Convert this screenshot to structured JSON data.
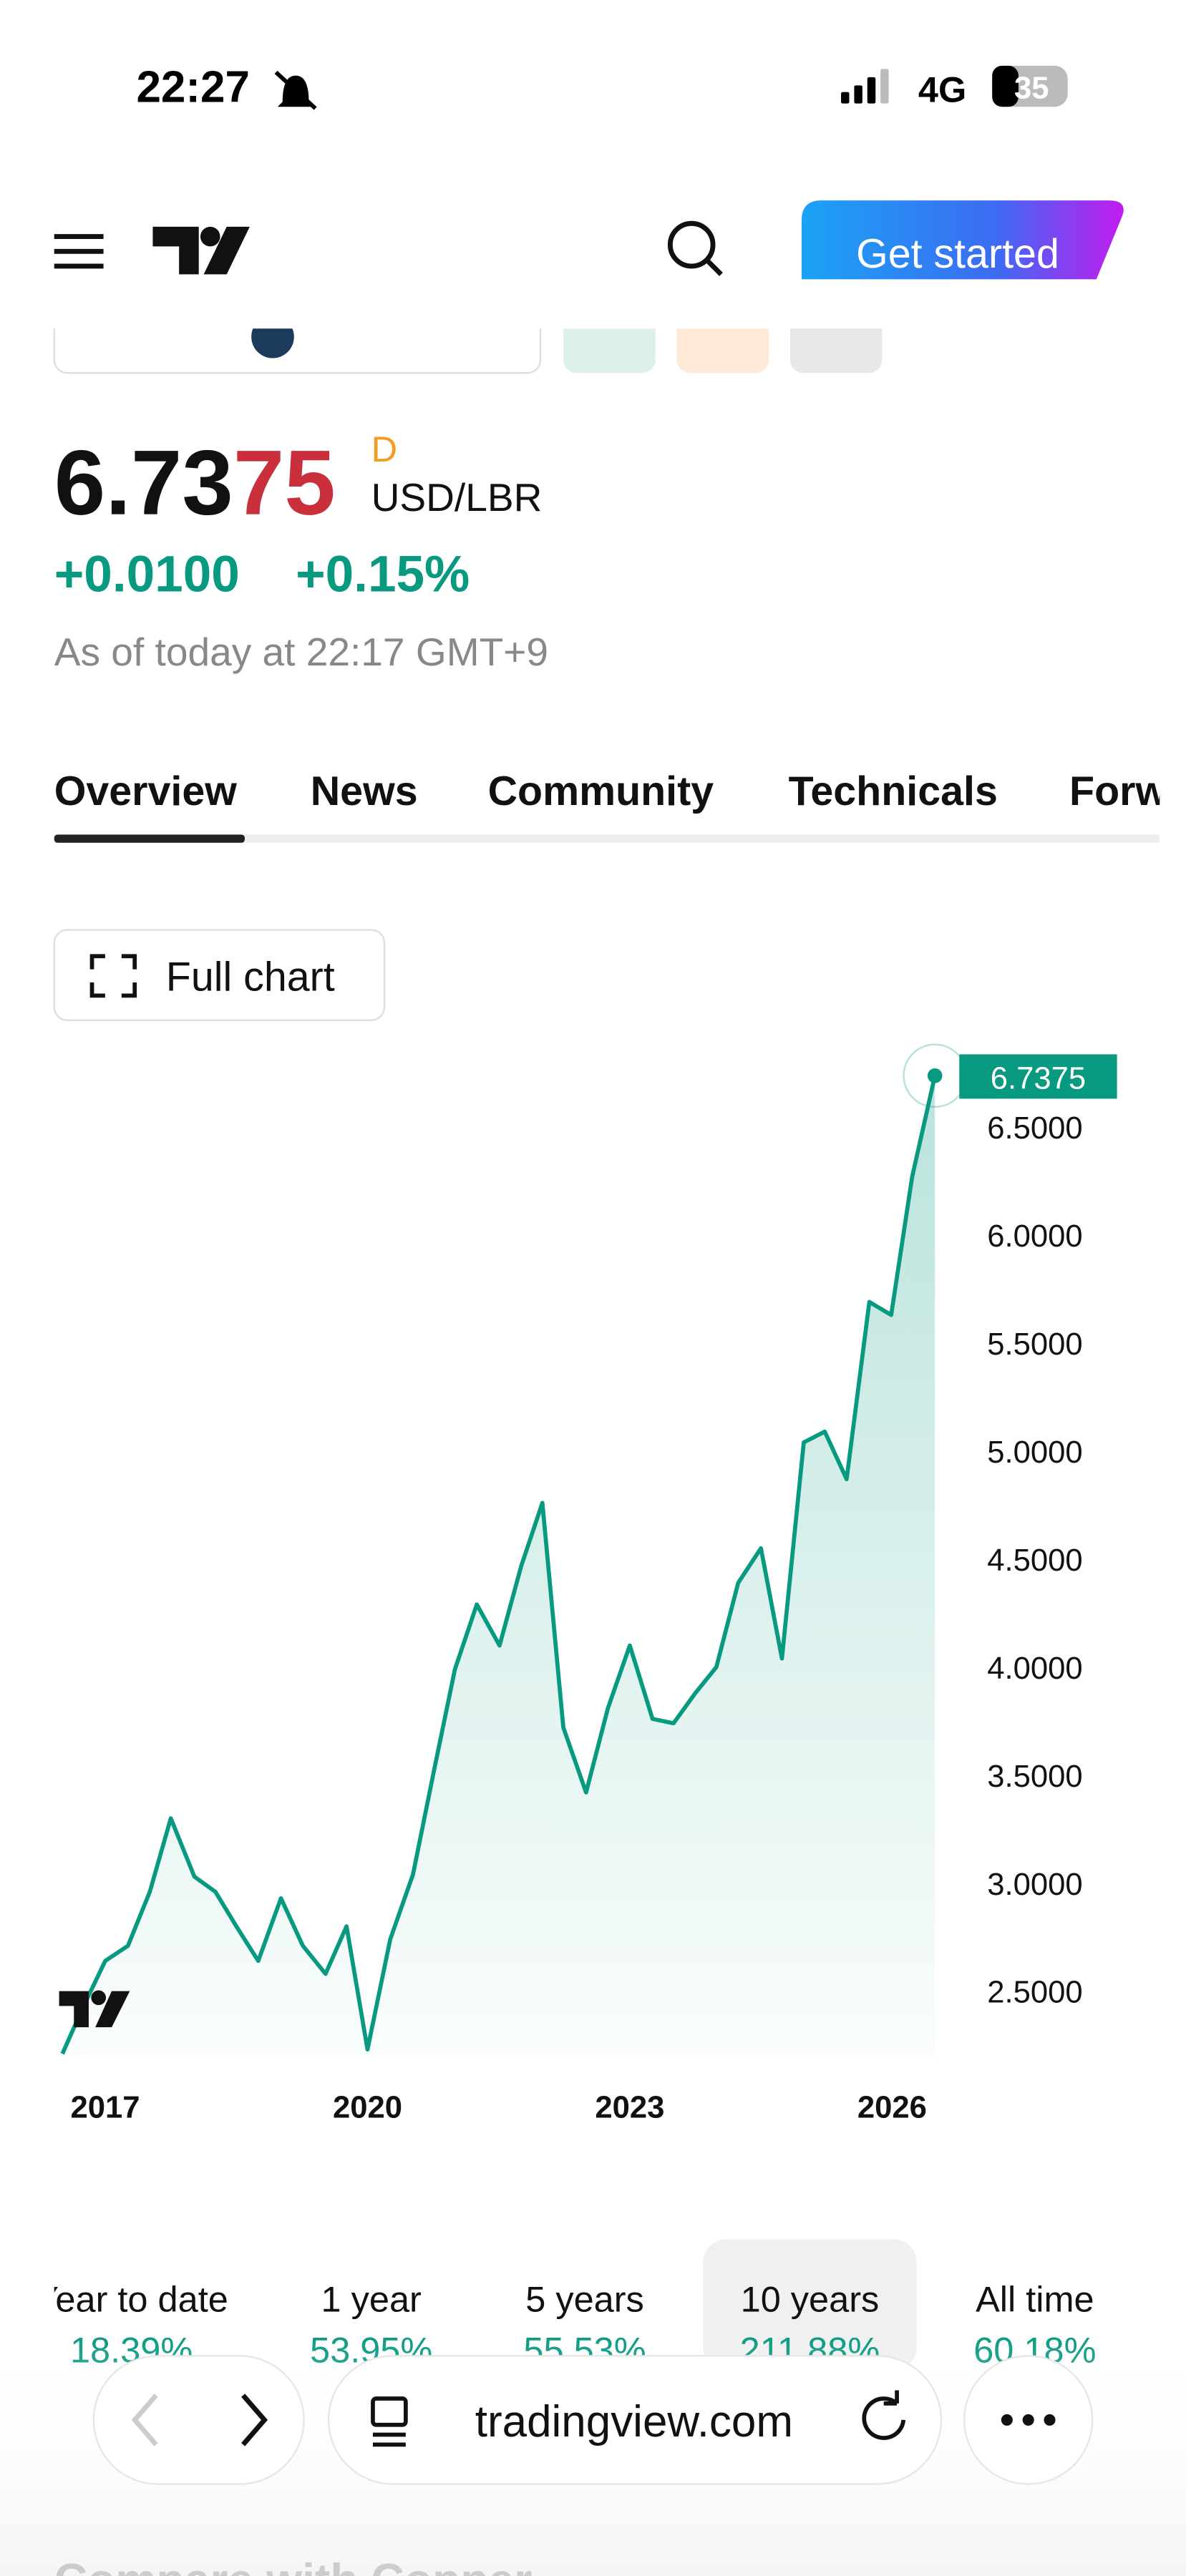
{
  "status_bar": {
    "time": "22:27",
    "network": "4G",
    "battery": "35"
  },
  "header": {
    "button": "Get started"
  },
  "quote": {
    "price_main": "6.73",
    "price_tail": "75",
    "flag": "D",
    "pair": "USD/LBR",
    "change": "+0.0100",
    "change_percent": "+0.15%",
    "as_of": "As of today at 22:17 GMT+9"
  },
  "tabs": [
    "Overview",
    "News",
    "Community",
    "Technicals",
    "Forward"
  ],
  "full_chart_button": "Full chart",
  "chart": {
    "type": "line",
    "color": "#089981",
    "x": [
      2016.51,
      2016.74,
      2017.0,
      2017.26,
      2017.51,
      2017.75,
      2018.02,
      2018.26,
      2018.5,
      2018.75,
      2019.01,
      2019.26,
      2019.52,
      2019.76,
      2020.0,
      2020.26,
      2020.52,
      2020.76,
      2021.0,
      2021.25,
      2021.51,
      2021.76,
      2022.0,
      2022.24,
      2022.5,
      2022.75,
      2023.0,
      2023.26,
      2023.5,
      2023.75,
      2023.99,
      2024.24,
      2024.5,
      2024.74,
      2024.99,
      2025.23,
      2025.48,
      2025.74,
      2025.99,
      2026.23,
      2026.49
    ],
    "values": [
      2.21,
      2.42,
      2.64,
      2.71,
      2.96,
      3.3,
      3.03,
      2.96,
      2.8,
      2.64,
      2.93,
      2.71,
      2.58,
      2.8,
      2.23,
      2.74,
      3.04,
      3.52,
      3.99,
      4.29,
      4.1,
      4.47,
      4.76,
      3.72,
      3.42,
      3.81,
      4.1,
      3.76,
      3.74,
      3.88,
      4.0,
      4.39,
      4.55,
      4.04,
      5.04,
      5.09,
      4.87,
      5.69,
      5.63,
      6.27,
      6.7375
    ],
    "xlim": [
      2016.36,
      2026.6
    ],
    "ylim": [
      2.2,
      6.8
    ],
    "xticks": [
      2017,
      2020,
      2023,
      2026
    ],
    "yticks": [
      {
        "value": 2.5,
        "label": "2.5000"
      },
      {
        "value": 3,
        "label": "3.0000"
      },
      {
        "value": 3.5,
        "label": "3.5000"
      },
      {
        "value": 4,
        "label": "4.0000"
      },
      {
        "value": 4.5,
        "label": "4.5000"
      },
      {
        "value": 5,
        "label": "5.0000"
      },
      {
        "value": 5.5,
        "label": "5.5000"
      },
      {
        "value": 6,
        "label": "6.0000"
      },
      {
        "value": 6.5,
        "label": "6.5000"
      }
    ]
  },
  "periods": [
    {
      "label": "Year to date",
      "change": "18.39%"
    },
    {
      "label": "1 year",
      "change": "53.95%"
    },
    {
      "label": "5 years",
      "change": "55.53%"
    },
    {
      "label": "10 years",
      "change": "211.88%"
    },
    {
      "label": "All time",
      "change": "60.18%"
    }
  ],
  "browser": {
    "url": "tradingview.com"
  },
  "footer": {
    "heading": "Compare with Copper"
  }
}
